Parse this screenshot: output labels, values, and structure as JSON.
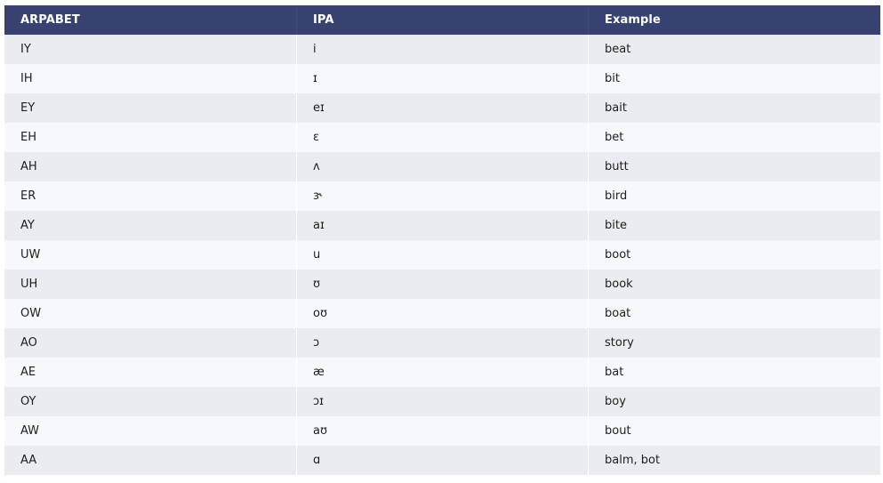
{
  "table": {
    "headers": [
      "ARPABET",
      "IPA",
      "Example"
    ],
    "rows": [
      [
        "IY",
        "i",
        "beat"
      ],
      [
        "IH",
        "ɪ",
        "bit"
      ],
      [
        "EY",
        "eɪ",
        "bait"
      ],
      [
        "EH",
        "ɛ",
        "bet"
      ],
      [
        "AH",
        "ʌ",
        "butt"
      ],
      [
        "ER",
        "ɝ",
        "bird"
      ],
      [
        "AY",
        "aɪ",
        "bite"
      ],
      [
        "UW",
        "u",
        "boot"
      ],
      [
        "UH",
        "ʊ",
        "book"
      ],
      [
        "OW",
        "oʊ",
        "boat"
      ],
      [
        "AO",
        "ɔ",
        "story"
      ],
      [
        "AE",
        "æ",
        "bat"
      ],
      [
        "OY",
        "ɔɪ",
        "boy"
      ],
      [
        "AW",
        "aʊ",
        "bout"
      ],
      [
        "AA",
        "ɑ",
        "balm, bot"
      ]
    ]
  },
  "colors": {
    "header_bg": "#374270",
    "row_odd_bg": "#ebecf0",
    "row_even_bg": "#f7f8fc"
  }
}
